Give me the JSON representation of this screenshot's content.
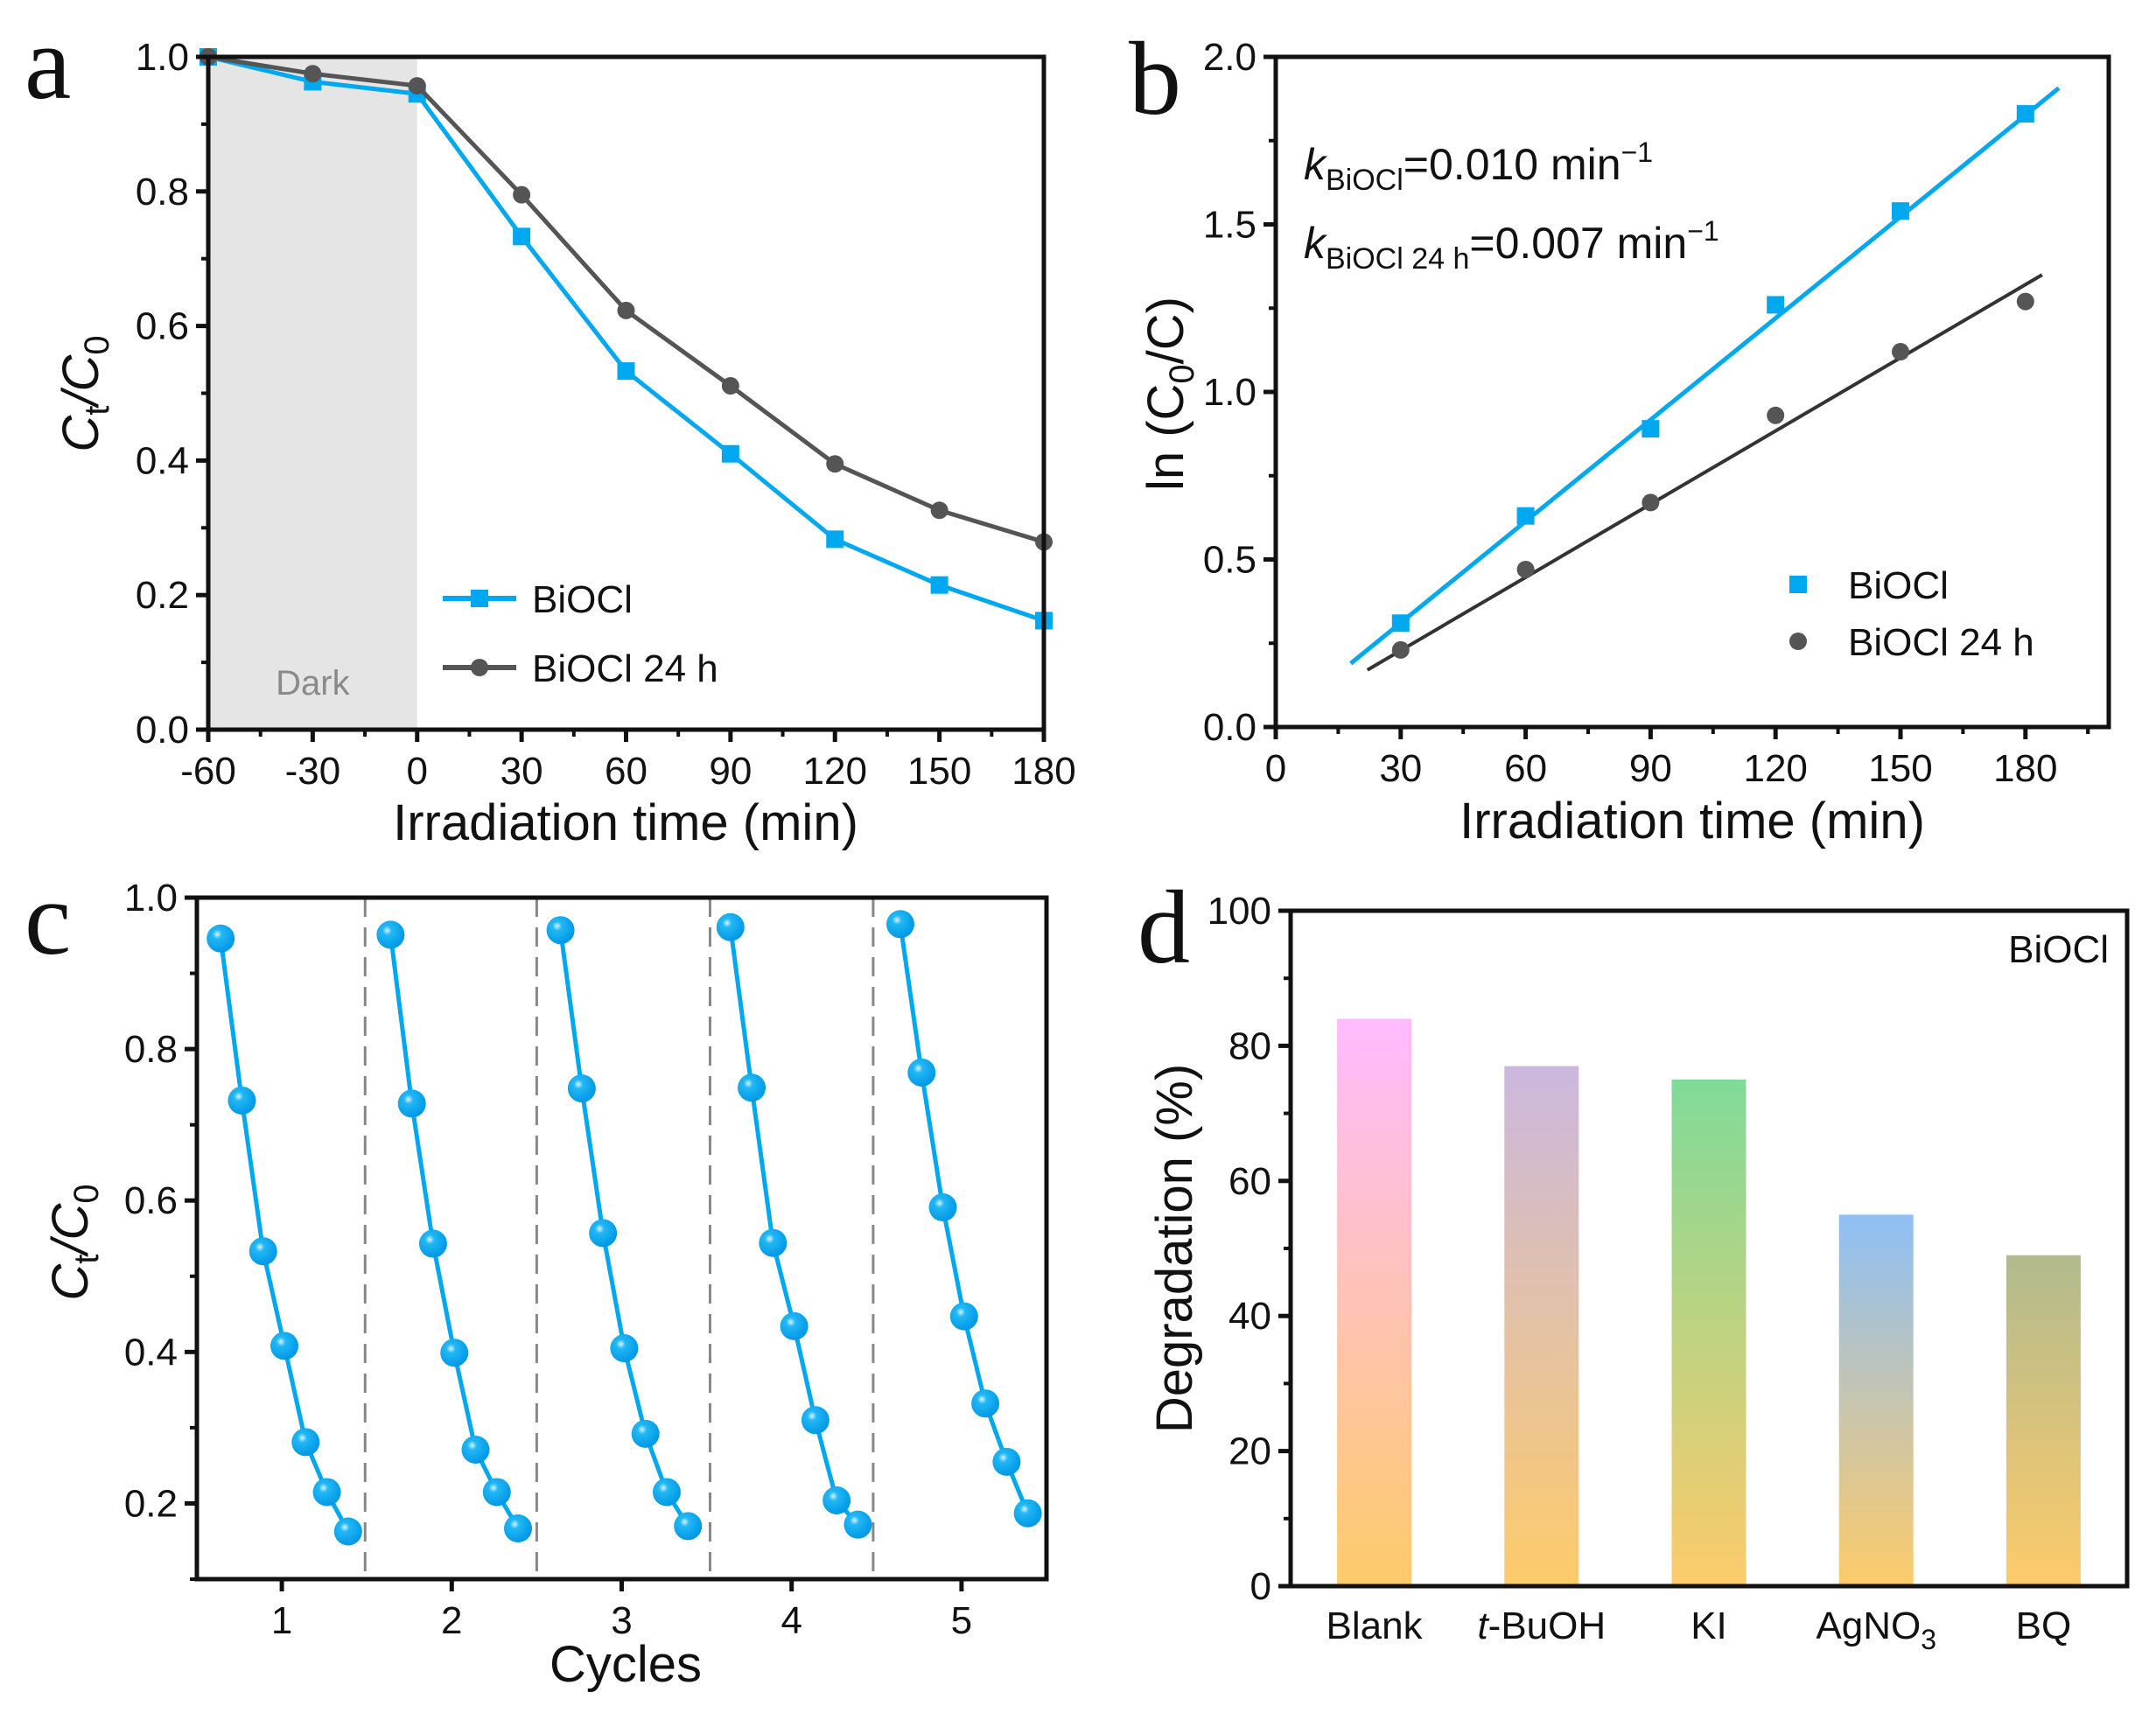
{
  "chart_data": [
    {
      "panel": "a",
      "type": "line",
      "xlabel": "Irradiation time (min)",
      "ylabel": "Ct/C0",
      "ylabel_parts": {
        "main": "C",
        "sub1": "t",
        "slash": "/C",
        "sub2": "0"
      },
      "xlim": [
        -60,
        180
      ],
      "ylim": [
        0,
        1.0
      ],
      "xticks": [
        -60,
        -30,
        0,
        30,
        60,
        90,
        120,
        150,
        180
      ],
      "yticks": [
        "0.0",
        "0.2",
        "0.4",
        "0.6",
        "0.8",
        "1.0"
      ],
      "ytick_values": [
        0,
        0.2,
        0.4,
        0.6,
        0.8,
        1.0
      ],
      "shaded_region": {
        "from": -60,
        "to": 0,
        "label": "Dark",
        "color": "#e5e5e5"
      },
      "legend_position": "center-right",
      "x": [
        -60,
        -30,
        0,
        30,
        60,
        90,
        120,
        150,
        180
      ],
      "series": [
        {
          "name": "BiOCl",
          "color": "#00a8f0",
          "marker": "square",
          "values": [
            1.0,
            0.963,
            0.945,
            0.733,
            0.533,
            0.41,
            0.283,
            0.215,
            0.162
          ]
        },
        {
          "name": "BiOCl 24 h",
          "color": "#555555",
          "marker": "circle",
          "values": [
            1.0,
            0.975,
            0.957,
            0.795,
            0.623,
            0.511,
            0.395,
            0.326,
            0.279
          ]
        }
      ]
    },
    {
      "panel": "b",
      "type": "scatter",
      "xlabel": "Irradiation time (min)",
      "ylabel": "ln (C0/C)",
      "ylabel_parts": {
        "pre": "ln (C",
        "sub": "0",
        "post": "/C)"
      },
      "xlim": [
        0,
        200
      ],
      "ylim": [
        0,
        2.0
      ],
      "xticks": [
        0,
        30,
        60,
        90,
        120,
        150,
        180
      ],
      "yticks": [
        "0.0",
        "0.5",
        "1.0",
        "1.5",
        "2.0"
      ],
      "ytick_values": [
        0,
        0.5,
        1.0,
        1.5,
        2.0
      ],
      "legend_position": "bottom-right",
      "x": [
        30,
        60,
        90,
        120,
        150,
        180
      ],
      "series": [
        {
          "name": "BiOCl",
          "color": "#00a8f0",
          "marker": "square",
          "values": [
            0.31,
            0.63,
            0.89,
            1.26,
            1.54,
            1.83
          ],
          "fit": {
            "slope": 0.0101,
            "intercept": 0.008,
            "x_from": 18,
            "x_to": 188
          }
        },
        {
          "name": "BiOCl 24 h",
          "color": "#555555",
          "marker": "circle",
          "values": [
            0.23,
            0.47,
            0.67,
            0.93,
            1.12,
            1.27
          ],
          "fit": {
            "slope": 0.00728,
            "intercept": 0.01,
            "x_from": 22,
            "x_to": 184
          }
        }
      ],
      "annotations": [
        {
          "k": "k",
          "sub": "BiOCl",
          "value": "=0.010 min",
          "sup": "−1"
        },
        {
          "k": "k",
          "sub": "BiOCl 24 h",
          "value": "=0.007 min",
          "sup": "−1"
        }
      ]
    },
    {
      "panel": "c",
      "type": "line",
      "xlabel": "Cycles",
      "ylabel": "Ct/C0",
      "ylabel_parts": {
        "main": "C",
        "sub1": "t",
        "slash": "/C",
        "sub2": "0"
      },
      "xlim": [
        0.5,
        5.5
      ],
      "ylim": [
        0.1,
        1.0
      ],
      "xticks": [
        1,
        2,
        3,
        4,
        5
      ],
      "yticks": [
        "0.2",
        "0.4",
        "0.6",
        "0.8",
        "1.0"
      ],
      "ytick_values": [
        0.2,
        0.4,
        0.6,
        0.8,
        1.0
      ],
      "separators": [
        1.49,
        2.5,
        3.52,
        4.48
      ],
      "color": "#00a8f0",
      "cycles": [
        {
          "cycle": 1,
          "values": [
            0.946,
            0.732,
            0.533,
            0.408,
            0.281,
            0.215,
            0.163
          ]
        },
        {
          "cycle": 2,
          "values": [
            0.951,
            0.728,
            0.543,
            0.399,
            0.271,
            0.215,
            0.167
          ]
        },
        {
          "cycle": 3,
          "values": [
            0.957,
            0.748,
            0.557,
            0.405,
            0.292,
            0.215,
            0.17
          ]
        },
        {
          "cycle": 4,
          "values": [
            0.961,
            0.749,
            0.544,
            0.434,
            0.31,
            0.204,
            0.172
          ]
        },
        {
          "cycle": 5,
          "values": [
            0.965,
            0.769,
            0.591,
            0.447,
            0.332,
            0.255,
            0.187
          ]
        }
      ]
    },
    {
      "panel": "d",
      "type": "bar",
      "title": "BiOCl",
      "xlabel": "",
      "ylabel": "Degradation (%)",
      "ylim": [
        0,
        100
      ],
      "yticks": [
        "0",
        "20",
        "40",
        "60",
        "80",
        "100"
      ],
      "ytick_values": [
        0,
        20,
        40,
        60,
        80,
        100
      ],
      "categories": [
        "Blank",
        "t-BuOH",
        "KI",
        "AgNO3",
        "BQ"
      ],
      "category_labels": [
        {
          "italic": "",
          "main": "Blank",
          "sub": ""
        },
        {
          "italic": "t",
          "main": "-BuOH",
          "sub": ""
        },
        {
          "italic": "",
          "main": "KI",
          "sub": ""
        },
        {
          "italic": "",
          "main": "AgNO",
          "sub": "3"
        },
        {
          "italic": "",
          "main": "BQ",
          "sub": ""
        }
      ],
      "values": [
        84,
        77,
        75,
        55,
        49
      ],
      "bar_colors_top": [
        "#ffbbff",
        "#cbb8df",
        "#80da98",
        "#8ebff5",
        "#b1ba8e"
      ],
      "bar_color_bottom": "#fdcb6a"
    }
  ],
  "panel_letters": [
    "a",
    "b",
    "c",
    "d"
  ]
}
